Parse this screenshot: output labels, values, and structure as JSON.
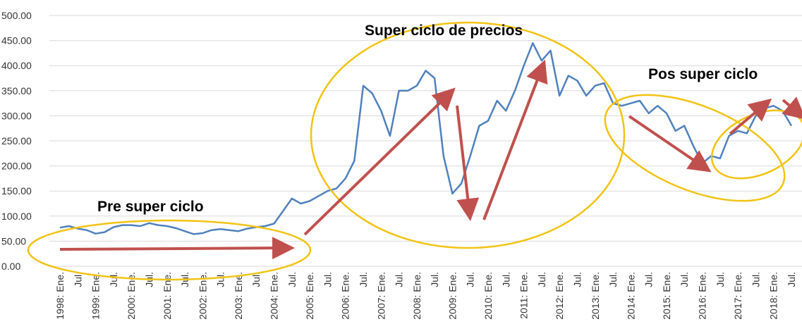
{
  "chart_data": {
    "type": "line",
    "annotations": [
      "Pre super ciclo",
      "Super ciclo de precios",
      "Pos super ciclo"
    ],
    "categories": [
      "1998: Ene.",
      null,
      "Jul.",
      null,
      "1999: Ene.",
      null,
      "Jul.",
      null,
      "2000: Ene.",
      null,
      "Jul.",
      null,
      "2001: Ene.",
      null,
      "Jul.",
      null,
      "2002: Ene.",
      null,
      "Jul.",
      null,
      "2003: Ene.",
      null,
      "Jul.",
      null,
      "2004: Ene.",
      null,
      "Jul.",
      null,
      "2005: Ene.",
      null,
      "Jul.",
      null,
      "2006: Ene.",
      null,
      "Jul.",
      null,
      "2007: Ene.",
      null,
      "Jul.",
      null,
      "2008: Ene.",
      null,
      "Jul.",
      null,
      "2009: Ene.",
      null,
      "Jul.",
      null,
      "2010: Ene.",
      null,
      "Jul.",
      null,
      "2011: Ene.",
      null,
      "Jul.",
      null,
      "2012: Ene.",
      null,
      "Jul.",
      null,
      "2013: Ene.",
      null,
      "Jul.",
      null,
      "2014: Ene.",
      null,
      "Jul.",
      null,
      "2015: Ene.",
      null,
      "Jul.",
      null,
      "2016: Ene.",
      null,
      "Jul.",
      null,
      "2017: Ene.",
      null,
      "Jul.",
      null,
      "2018: Ene.",
      null,
      "Jul."
    ],
    "values": [
      77,
      80,
      75,
      72,
      65,
      68,
      78,
      82,
      82,
      80,
      86,
      82,
      80,
      76,
      70,
      64,
      66,
      72,
      74,
      72,
      70,
      75,
      78,
      80,
      85,
      110,
      135,
      125,
      130,
      140,
      150,
      155,
      175,
      210,
      360,
      345,
      310,
      260,
      350,
      350,
      360,
      390,
      375,
      220,
      145,
      165,
      220,
      280,
      290,
      330,
      310,
      350,
      400,
      445,
      410,
      430,
      340,
      380,
      370,
      340,
      360,
      365,
      325,
      320,
      325,
      330,
      305,
      320,
      305,
      270,
      280,
      240,
      205,
      220,
      215,
      260,
      270,
      265,
      300,
      315,
      320,
      310,
      280
    ],
    "color": "#4f81bd",
    "ylim": [
      0,
      500
    ],
    "yticks": [
      {
        "value": 0,
        "label": "0.00"
      },
      {
        "value": 50,
        "label": "50.00"
      },
      {
        "value": 100,
        "label": "100.00"
      },
      {
        "value": 150,
        "label": "150.00"
      },
      {
        "value": 200,
        "label": "200.00"
      },
      {
        "value": 250,
        "label": "250.00"
      },
      {
        "value": 300,
        "label": "300.00"
      },
      {
        "value": 350,
        "label": "350.00"
      },
      {
        "value": 400,
        "label": "400.00"
      },
      {
        "value": 450,
        "label": "450.00"
      },
      {
        "value": 500,
        "label": "500.00"
      }
    ],
    "grid": true
  }
}
